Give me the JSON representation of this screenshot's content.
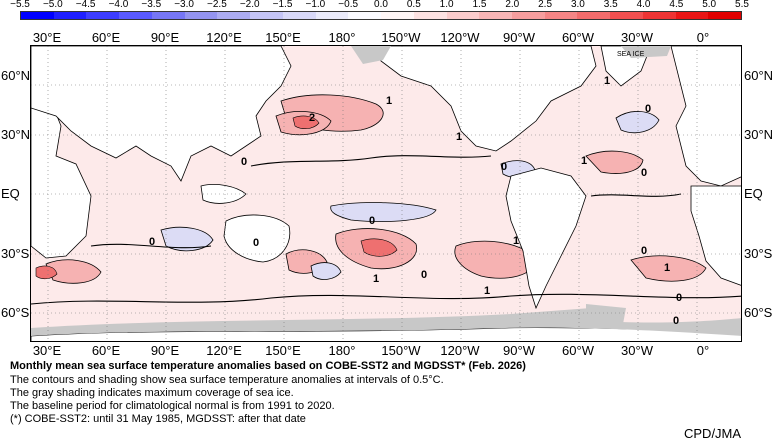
{
  "colorbar": {
    "ticks": [
      "−5.5",
      "−5.0",
      "−4.5",
      "−4.0",
      "−3.5",
      "−3.0",
      "−2.5",
      "−2.0",
      "−1.5",
      "−1.0",
      "−0.5",
      "0.0",
      "0.5",
      "1.0",
      "1.5",
      "2.0",
      "2.5",
      "3.0",
      "3.5",
      "4.0",
      "4.5",
      "5.0",
      "5.5"
    ],
    "colors": [
      "#0000ff",
      "#1f1fff",
      "#3d3dff",
      "#5a5aff",
      "#7676f6",
      "#9494f0",
      "#acacf2",
      "#c4c4f5",
      "#d8d8f8",
      "#ebebfb",
      "#fafaff",
      "#fff6f6",
      "#fde2e2",
      "#fbcccc",
      "#f9b6b6",
      "#f79e9e",
      "#f58585",
      "#f36c6c",
      "#f15050",
      "#ee3434",
      "#ea1616",
      "#e00000"
    ]
  },
  "map": {
    "lon_labels_top": [
      "30°E",
      "60°E",
      "90°E",
      "120°E",
      "150°E",
      "180°",
      "150°W",
      "120°W",
      "90°W",
      "60°W",
      "30°W",
      "0°"
    ],
    "lon_labels_bottom": [
      "30°E",
      "60°E",
      "90°E",
      "120°E",
      "150°E",
      "180°",
      "150°W",
      "120°W",
      "90°W",
      "60°W",
      "30°W",
      "0°"
    ],
    "lat_labels_left": [
      "60°N",
      "30°N",
      "EQ",
      "30°S",
      "60°S"
    ],
    "lat_labels_right": [
      "60°N",
      "30°N",
      "EQ",
      "30°S",
      "60°S"
    ],
    "sea_ice_label": "SEA ICE",
    "contour_labels": [
      "1",
      "2",
      "1",
      "0",
      "1",
      "0",
      "0",
      "1",
      "0",
      "0",
      "0",
      "1",
      "0",
      "1",
      "1",
      "0",
      "0",
      "0",
      "1",
      "0"
    ],
    "colors": {
      "land": "#ffffff",
      "ocean_base": "#fdeaea",
      "ice": "#c8c8c8",
      "warm": "#f6b2b2",
      "cool": "#dcdcf5"
    }
  },
  "caption": {
    "title": "Monthly mean sea surface temperature anomalies based on COBE-SST2 and MGDSST* (Feb. 2026)",
    "lines": [
      "The contours and shading show sea surface temperature anomalies at intervals of 0.5°C.",
      "The gray shading indicates maximum coverage of sea ice.",
      "The baseline period for climatological normal is from 1991 to 2020.",
      "(*) COBE-SST2: until 31 May 1985, MGDSST: after that date"
    ]
  },
  "credit": "CPD/JMA"
}
